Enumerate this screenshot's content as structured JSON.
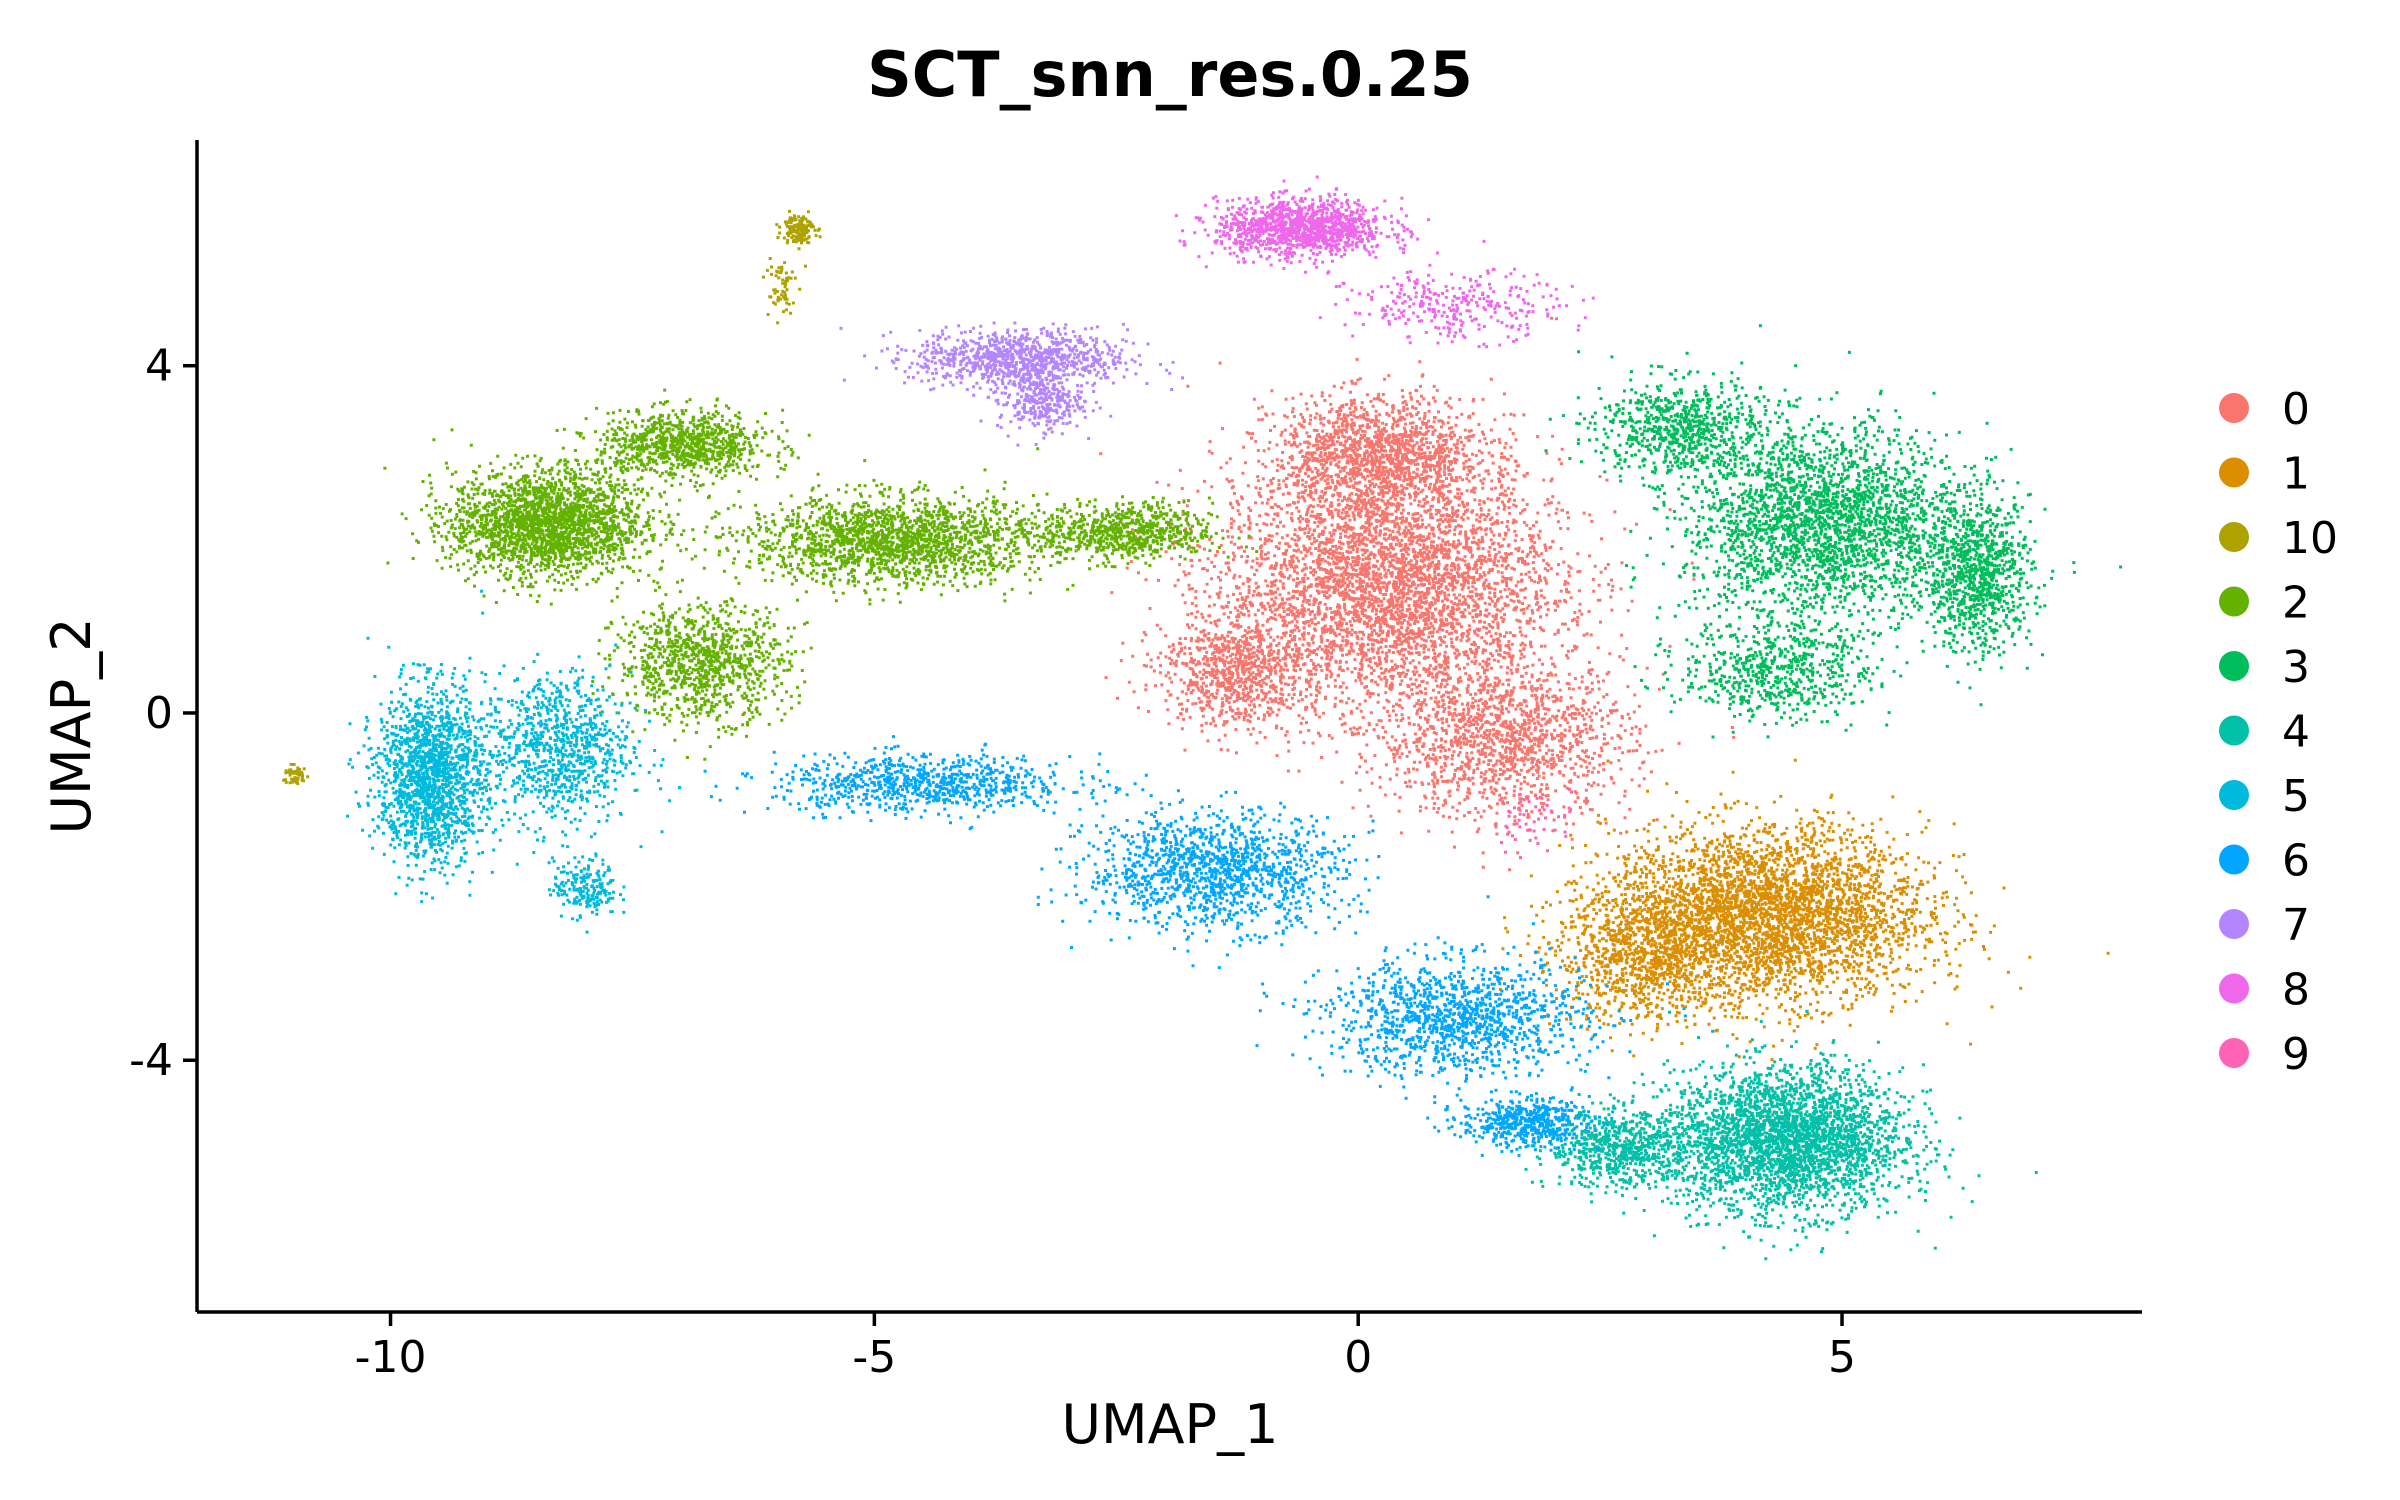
{
  "chart_data": {
    "type": "scatter",
    "title": "SCT_snn_res.0.25",
    "xlabel": "UMAP_1",
    "ylabel": "UMAP_2",
    "xlim": [
      -12,
      8.1
    ],
    "ylim": [
      -6.9,
      6.6
    ],
    "x_ticks": [
      -10,
      -5,
      0,
      5
    ],
    "x_tick_labels": [
      "-10",
      "-5",
      "0",
      "5"
    ],
    "y_ticks": [
      -4,
      0,
      4
    ],
    "y_tick_labels": [
      "-4",
      "0",
      "4"
    ],
    "grid": false,
    "legend_position": "right",
    "legend": [
      {
        "label": "0",
        "color": "#F8766D"
      },
      {
        "label": "1",
        "color": "#DB8E00"
      },
      {
        "label": "10",
        "color": "#AEA200"
      },
      {
        "label": "2",
        "color": "#64B200"
      },
      {
        "label": "3",
        "color": "#00BD5C"
      },
      {
        "label": "4",
        "color": "#00C1A7"
      },
      {
        "label": "5",
        "color": "#00BADE"
      },
      {
        "label": "6",
        "color": "#00A6FF"
      },
      {
        "label": "7",
        "color": "#B385FF"
      },
      {
        "label": "8",
        "color": "#EF67EB"
      },
      {
        "label": "9",
        "color": "#FF63B6"
      }
    ],
    "clusters": [
      {
        "label": "0",
        "color": "#F8766D",
        "blobs": [
          {
            "center": [
              0.3,
              1.5
            ],
            "spread": [
              1.6,
              1.3
            ],
            "weight": 4200
          },
          {
            "center": [
              0.2,
              3.0
            ],
            "spread": [
              1.0,
              0.6
            ],
            "weight": 1400
          },
          {
            "center": [
              1.5,
              -0.3
            ],
            "spread": [
              1.2,
              0.8
            ],
            "weight": 1400
          },
          {
            "center": [
              -1.3,
              0.5
            ],
            "spread": [
              0.7,
              0.6
            ],
            "weight": 800
          }
        ]
      },
      {
        "label": "1",
        "color": "#DB8E00",
        "blobs": [
          {
            "center": [
              4.2,
              -2.3
            ],
            "spread": [
              1.5,
              0.9
            ],
            "weight": 3600
          },
          {
            "center": [
              3.0,
              -2.8
            ],
            "spread": [
              0.9,
              0.7
            ],
            "weight": 900
          }
        ]
      },
      {
        "label": "10",
        "color": "#AEA200",
        "blobs": [
          {
            "center": [
              -5.8,
              5.6
            ],
            "spread": [
              0.15,
              0.15
            ],
            "weight": 140
          },
          {
            "center": [
              -6.0,
              4.9
            ],
            "spread": [
              0.15,
              0.4
            ],
            "weight": 60
          },
          {
            "center": [
              -11.0,
              -0.7
            ],
            "spread": [
              0.12,
              0.1
            ],
            "weight": 50
          }
        ]
      },
      {
        "label": "2",
        "color": "#64B200",
        "blobs": [
          {
            "center": [
              -8.4,
              2.2
            ],
            "spread": [
              0.9,
              0.55
            ],
            "weight": 2200
          },
          {
            "center": [
              -7.0,
              3.1
            ],
            "spread": [
              0.8,
              0.35
            ],
            "weight": 900
          },
          {
            "center": [
              -6.8,
              0.6
            ],
            "spread": [
              0.8,
              0.6
            ],
            "weight": 1000
          },
          {
            "center": [
              -4.8,
              2.0
            ],
            "spread": [
              1.4,
              0.45
            ],
            "weight": 1800
          },
          {
            "center": [
              -2.4,
              2.1
            ],
            "spread": [
              0.8,
              0.3
            ],
            "weight": 700
          }
        ]
      },
      {
        "label": "3",
        "color": "#00BD5C",
        "blobs": [
          {
            "center": [
              4.8,
              2.2
            ],
            "spread": [
              1.3,
              1.0
            ],
            "weight": 2600
          },
          {
            "center": [
              6.4,
              1.6
            ],
            "spread": [
              0.5,
              0.8
            ],
            "weight": 900
          },
          {
            "center": [
              3.3,
              3.3
            ],
            "spread": [
              0.8,
              0.5
            ],
            "weight": 700
          },
          {
            "center": [
              4.3,
              0.5
            ],
            "spread": [
              0.9,
              0.5
            ],
            "weight": 600
          }
        ]
      },
      {
        "label": "4",
        "color": "#00C1A7",
        "blobs": [
          {
            "center": [
              4.4,
              -4.9
            ],
            "spread": [
              1.1,
              0.75
            ],
            "weight": 3000
          },
          {
            "center": [
              2.7,
              -5.0
            ],
            "spread": [
              0.7,
              0.4
            ],
            "weight": 700
          }
        ]
      },
      {
        "label": "5",
        "color": "#00BADE",
        "blobs": [
          {
            "center": [
              -9.6,
              -0.7
            ],
            "spread": [
              0.5,
              0.9
            ],
            "weight": 1600
          },
          {
            "center": [
              -8.3,
              -0.4
            ],
            "spread": [
              0.7,
              0.8
            ],
            "weight": 900
          },
          {
            "center": [
              -8.0,
              -2.0
            ],
            "spread": [
              0.3,
              0.3
            ],
            "weight": 200
          }
        ]
      },
      {
        "label": "6",
        "color": "#00A6FF",
        "blobs": [
          {
            "center": [
              -4.5,
              -0.8
            ],
            "spread": [
              1.4,
              0.3
            ],
            "weight": 800
          },
          {
            "center": [
              -1.5,
              -1.8
            ],
            "spread": [
              1.2,
              0.6
            ],
            "weight": 1300
          },
          {
            "center": [
              1.0,
              -3.5
            ],
            "spread": [
              1.2,
              0.6
            ],
            "weight": 1200
          },
          {
            "center": [
              1.7,
              -4.7
            ],
            "spread": [
              0.6,
              0.25
            ],
            "weight": 500
          }
        ]
      },
      {
        "label": "7",
        "color": "#B385FF",
        "blobs": [
          {
            "center": [
              -3.5,
              4.1
            ],
            "spread": [
              1.0,
              0.3
            ],
            "weight": 900
          },
          {
            "center": [
              -3.3,
              3.6
            ],
            "spread": [
              0.4,
              0.3
            ],
            "weight": 300
          }
        ]
      },
      {
        "label": "8",
        "color": "#EF67EB",
        "blobs": [
          {
            "center": [
              -0.6,
              5.6
            ],
            "spread": [
              0.8,
              0.3
            ],
            "weight": 1200
          },
          {
            "center": [
              1.0,
              4.7
            ],
            "spread": [
              1.0,
              0.35
            ],
            "weight": 300
          }
        ]
      },
      {
        "label": "9",
        "color": "#FF63B6",
        "blobs": [
          {
            "center": [
              1.8,
              -1.2
            ],
            "spread": [
              0.4,
              0.3
            ],
            "weight": 50
          }
        ]
      }
    ]
  }
}
